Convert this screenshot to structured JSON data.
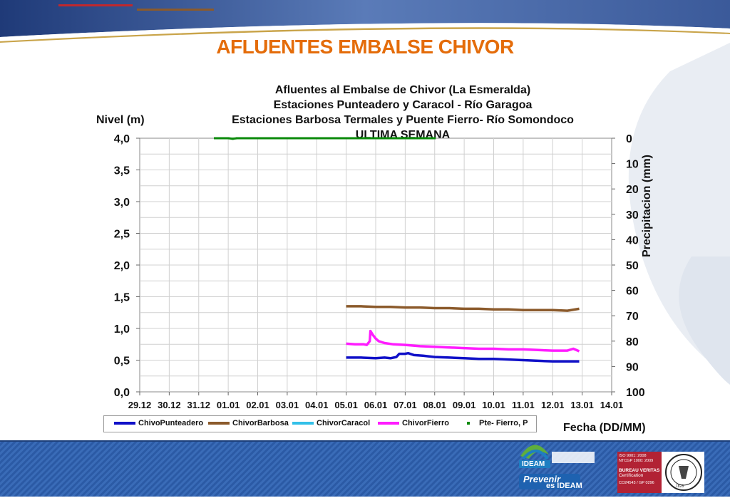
{
  "slide_title": "AFLUENTES EMBALSE CHIVOR",
  "colors": {
    "title": "#e46c0a",
    "header_band": "#3a5694",
    "footer_band": "#2f5fa8",
    "accent_red": "#c0282d",
    "accent_brown": "#8b5a2b"
  },
  "chart_data": {
    "type": "line",
    "title": [
      "Afluentes al Embalse de Chivor (La Esmeralda)",
      "Estaciones Punteadero y Caracol - Río Garagoa",
      "Estaciones Barbosa Termales y Puente Fierro- Río Somondoco",
      "ULTIMA SEMANA"
    ],
    "ylabel": "Nivel (m)",
    "y2label": "Precipitacion (mm)",
    "xlabel": "Fecha (DD/MM)",
    "x_ticks": [
      "29.12",
      "30.12",
      "31.12",
      "01.01",
      "02.01",
      "03.01",
      "04.01",
      "05.01",
      "06.01",
      "07.01",
      "08.01",
      "09.01",
      "10.01",
      "11.01",
      "12.01",
      "13.01",
      "14.01"
    ],
    "y_ticks": [
      "0,0",
      "0,5",
      "1,0",
      "1,5",
      "2,0",
      "2,5",
      "3,0",
      "3,5",
      "4,0"
    ],
    "y2_ticks": [
      "0",
      "10",
      "20",
      "30",
      "40",
      "50",
      "60",
      "70",
      "80",
      "90",
      "100"
    ],
    "ylim": [
      0,
      4
    ],
    "y2lim": [
      0,
      100
    ],
    "y2_inverted": true,
    "grid": true,
    "legend_position": "bottom",
    "series": [
      {
        "name": "ChivoPunteadero",
        "color": "#1010c8",
        "style": "line",
        "points": [
          [
            7.0,
            0.54
          ],
          [
            7.5,
            0.54
          ],
          [
            8.0,
            0.53
          ],
          [
            8.3,
            0.54
          ],
          [
            8.5,
            0.53
          ],
          [
            8.7,
            0.55
          ],
          [
            8.8,
            0.6
          ],
          [
            9.0,
            0.6
          ],
          [
            9.1,
            0.61
          ],
          [
            9.3,
            0.58
          ],
          [
            9.6,
            0.57
          ],
          [
            10.0,
            0.55
          ],
          [
            10.5,
            0.54
          ],
          [
            11.0,
            0.53
          ],
          [
            11.5,
            0.52
          ],
          [
            12.0,
            0.52
          ],
          [
            12.5,
            0.51
          ],
          [
            13.0,
            0.5
          ],
          [
            13.5,
            0.49
          ],
          [
            14.0,
            0.48
          ],
          [
            14.5,
            0.48
          ],
          [
            14.9,
            0.48
          ]
        ]
      },
      {
        "name": "ChivorBarbosa",
        "color": "#8b5a2b",
        "style": "line",
        "points": [
          [
            7.0,
            1.35
          ],
          [
            7.5,
            1.35
          ],
          [
            8.0,
            1.34
          ],
          [
            8.5,
            1.34
          ],
          [
            9.0,
            1.33
          ],
          [
            9.5,
            1.33
          ],
          [
            10.0,
            1.32
          ],
          [
            10.5,
            1.32
          ],
          [
            11.0,
            1.31
          ],
          [
            11.5,
            1.31
          ],
          [
            12.0,
            1.3
          ],
          [
            12.5,
            1.3
          ],
          [
            13.0,
            1.29
          ],
          [
            13.5,
            1.29
          ],
          [
            14.0,
            1.29
          ],
          [
            14.5,
            1.28
          ],
          [
            14.9,
            1.31
          ]
        ]
      },
      {
        "name": "ChivorCaracol",
        "color": "#33c0e8",
        "style": "line",
        "points": []
      },
      {
        "name": "ChivorFierro",
        "color": "#ff1cff",
        "style": "line",
        "points": [
          [
            7.0,
            0.76
          ],
          [
            7.3,
            0.75
          ],
          [
            7.6,
            0.75
          ],
          [
            7.7,
            0.74
          ],
          [
            7.8,
            0.8
          ],
          [
            7.82,
            0.96
          ],
          [
            7.9,
            0.9
          ],
          [
            8.0,
            0.84
          ],
          [
            8.1,
            0.8
          ],
          [
            8.3,
            0.77
          ],
          [
            8.6,
            0.75
          ],
          [
            9.0,
            0.74
          ],
          [
            9.5,
            0.72
          ],
          [
            10.0,
            0.71
          ],
          [
            10.5,
            0.7
          ],
          [
            11.0,
            0.69
          ],
          [
            11.5,
            0.68
          ],
          [
            12.0,
            0.68
          ],
          [
            12.5,
            0.67
          ],
          [
            13.0,
            0.67
          ],
          [
            13.5,
            0.66
          ],
          [
            14.0,
            0.65
          ],
          [
            14.5,
            0.65
          ],
          [
            14.7,
            0.68
          ],
          [
            14.9,
            0.64
          ]
        ]
      },
      {
        "name": "Pte- Fierro, P",
        "color": "#0a8a0a",
        "style": "dots",
        "precip_points": [
          [
            2.55,
            0
          ],
          [
            2.65,
            0
          ],
          [
            2.8,
            0
          ],
          [
            3.0,
            0
          ],
          [
            3.15,
            0.2
          ],
          [
            3.3,
            0
          ],
          [
            3.7,
            0
          ],
          [
            4.2,
            0
          ],
          [
            4.7,
            0
          ],
          [
            5.2,
            0
          ],
          [
            5.7,
            0
          ],
          [
            6.2,
            0
          ],
          [
            6.7,
            0
          ],
          [
            7.2,
            0
          ],
          [
            7.7,
            0
          ],
          [
            8.2,
            0
          ],
          [
            8.7,
            0
          ],
          [
            9.2,
            0
          ],
          [
            9.7,
            0
          ],
          [
            10.0,
            0
          ]
        ]
      }
    ]
  },
  "logos": {
    "ideam_caption": [
      "Prevenir",
      "es IDEAM"
    ],
    "ideam_name": "IDEAM",
    "cert_lines": [
      "ISO 9001: 2008",
      "NTCGP 1000: 2009",
      "BUREAU VERITAS",
      "Certification",
      "CO24543 / GP 0296"
    ],
    "cert_seal_year": "1828"
  }
}
